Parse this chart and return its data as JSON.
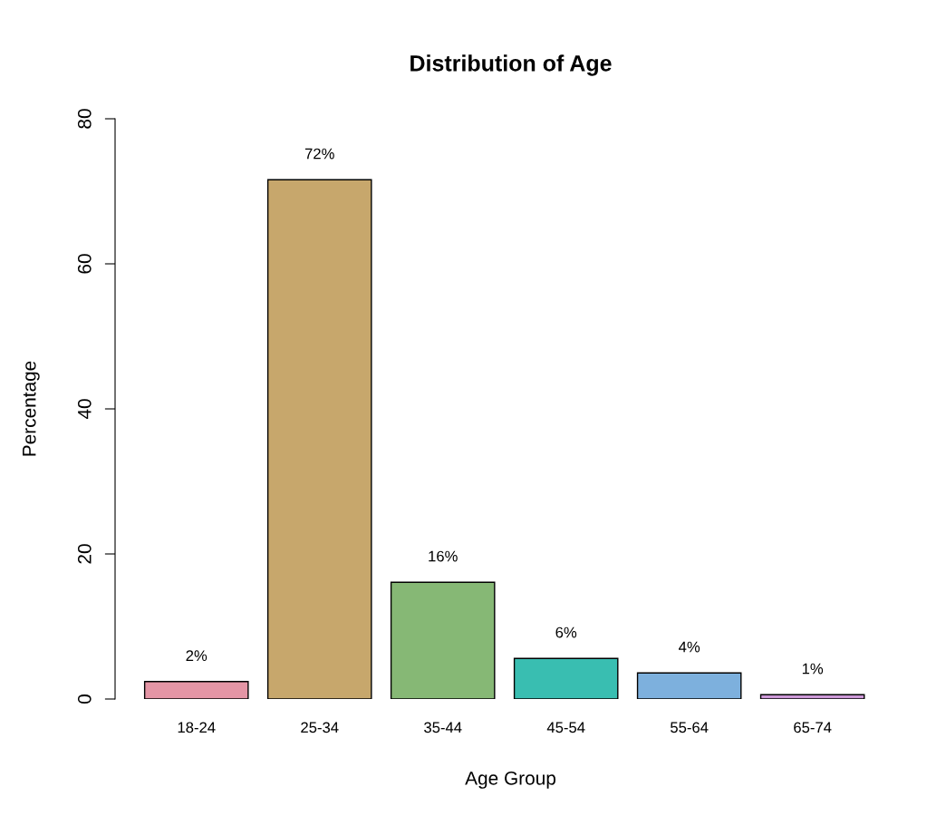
{
  "chart_data": {
    "type": "bar",
    "title": "Distribution of Age",
    "xlabel": "Age Group",
    "ylabel": "Percentage",
    "categories": [
      "18-24",
      "25-34",
      "35-44",
      "45-54",
      "55-64",
      "65-74"
    ],
    "values": [
      2.4,
      71.6,
      16.1,
      5.6,
      3.6,
      0.6
    ],
    "colors": [
      "#e495a5",
      "#c7a76c",
      "#86b875",
      "#39beb1",
      "#7db0dd",
      "#cd99d8"
    ],
    "value_labels": [
      "2%",
      "72%",
      "16%",
      "6%",
      "4%",
      "1%"
    ],
    "ylim": [
      0,
      80
    ],
    "yticks": [
      0,
      20,
      40,
      60,
      80
    ],
    "grid": false
  }
}
